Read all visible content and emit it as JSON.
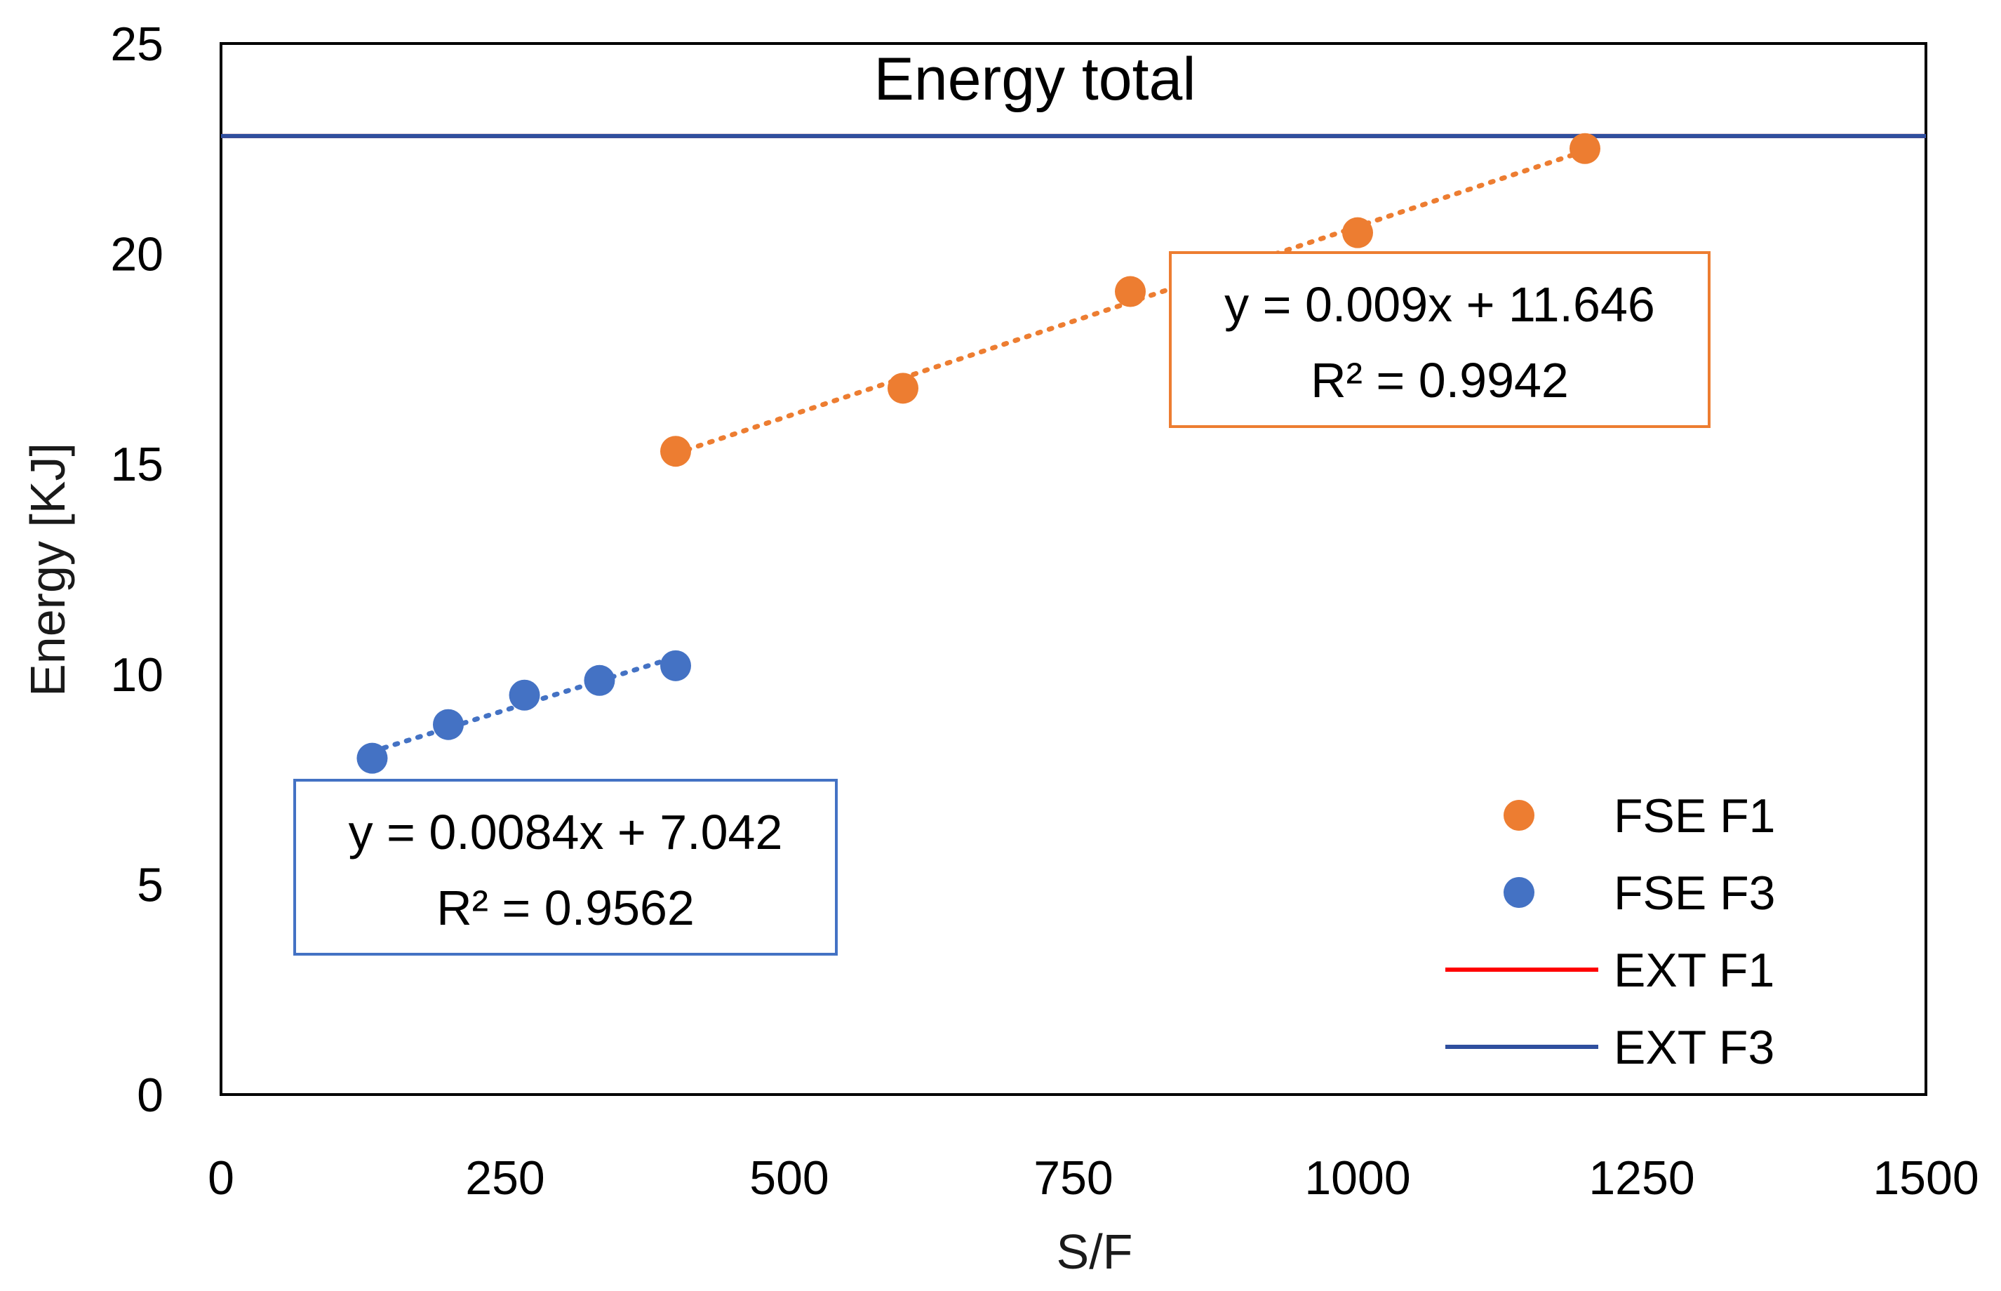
{
  "chart_data": {
    "type": "scatter",
    "title": "Energy total",
    "xlabel": "S/F",
    "ylabel": "Energy [KJ]",
    "xlim": [
      0,
      1500
    ],
    "ylim": [
      0,
      25
    ],
    "x_ticks": [
      "0",
      "250",
      "500",
      "750",
      "1000",
      "1250",
      "1500"
    ],
    "y_ticks": [
      "0",
      "5",
      "10",
      "15",
      "20",
      "25"
    ],
    "grid": false,
    "legend_position": "bottom-right",
    "series": [
      {
        "name": "FSE F1",
        "kind": "scatter",
        "color": "#ED7D31",
        "x": [
          400,
          600,
          800,
          1000,
          1200
        ],
        "y": [
          15.3,
          16.8,
          19.1,
          20.5,
          22.5
        ],
        "trendline": {
          "slope": 0.009,
          "intercept": 11.646,
          "style": "dotted"
        }
      },
      {
        "name": "FSE F3",
        "kind": "scatter",
        "color": "#4472C4",
        "x": [
          133,
          200,
          267,
          333,
          400
        ],
        "y": [
          8.0,
          8.8,
          9.5,
          9.85,
          10.2
        ],
        "trendline": {
          "slope": 0.0084,
          "intercept": 7.042,
          "style": "dotted"
        }
      },
      {
        "name": "EXT F1",
        "kind": "hline",
        "color": "#FF0000",
        "y": 22.8
      },
      {
        "name": "EXT F3",
        "kind": "hline",
        "color": "#2F4F9E",
        "y": 22.8
      }
    ],
    "annotations": [
      {
        "series": "FSE F1",
        "equation": "y = 0.009x + 11.646",
        "r2": "R² = 0.9942",
        "border_color": "#ED7D31"
      },
      {
        "series": "FSE F3",
        "equation": "y = 0.0084x + 7.042",
        "r2": "R² = 0.9562",
        "border_color": "#4472C4"
      }
    ]
  }
}
